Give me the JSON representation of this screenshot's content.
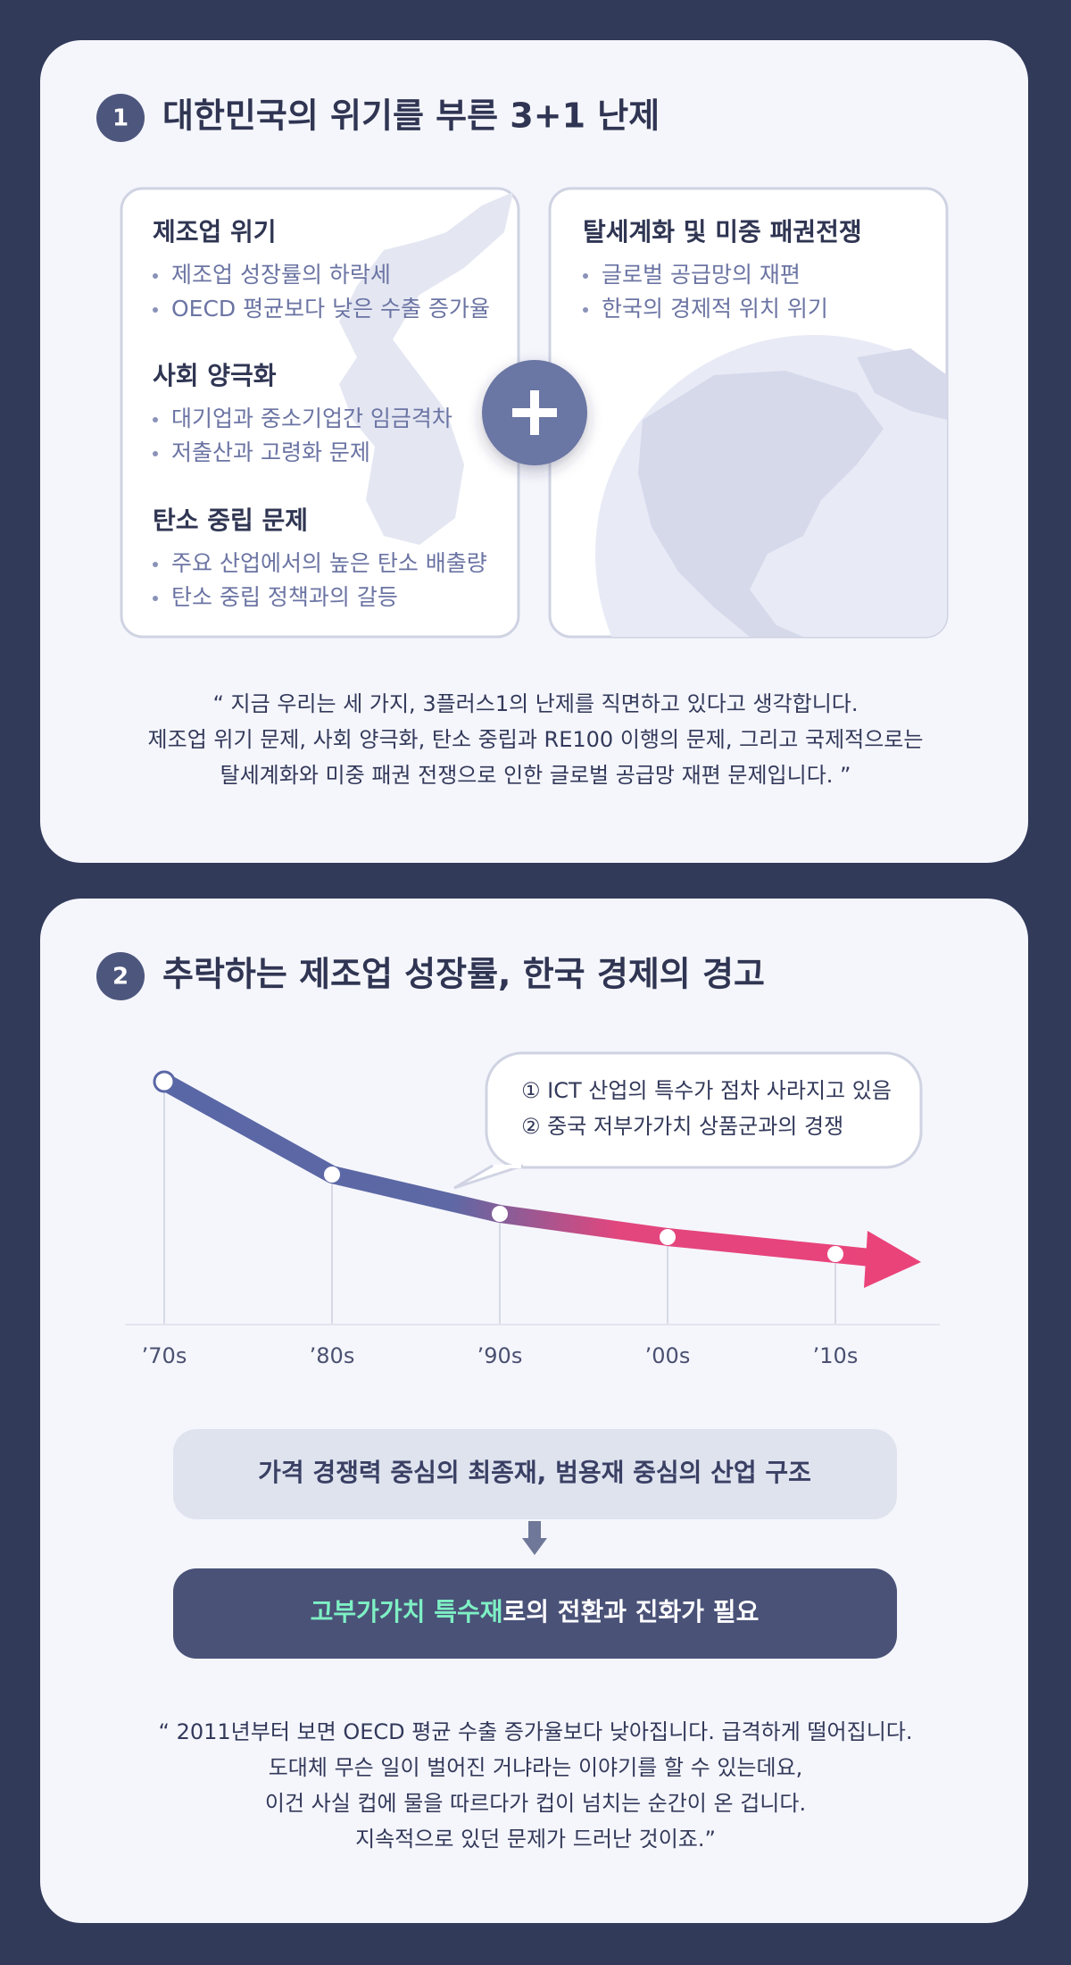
{
  "section1": {
    "number": "1",
    "title": "대한민국의 위기를 부른 3+1 난제",
    "left_panel": [
      {
        "heading": "제조업 위기",
        "bullets": [
          "제조업 성장률의 하락세",
          "OECD 평균보다 낮은 수출 증가율"
        ]
      },
      {
        "heading": "사회 양극화",
        "bullets": [
          "대기업과 중소기업간 임금격차",
          "저출산과 고령화 문제"
        ]
      },
      {
        "heading": "탄소 중립 문제",
        "bullets": [
          "주요 산업에서의 높은 탄소 배출량",
          "탄소 중립 정책과의 갈등"
        ]
      }
    ],
    "right_panel": {
      "heading": "탈세계화 및 미중 패권전쟁",
      "bullets": [
        "글로벌 공급망의 재편",
        "한국의 경제적 위치 위기"
      ]
    },
    "quote": [
      "“ 지금 우리는 세 가지, 3플러스1의 난제를 직면하고 있다고 생각합니다.",
      "제조업 위기 문제, 사회 양극화, 탄소 중립과 RE100 이행의 문제, 그리고 국제적으로는",
      "탈세계화와 미중 패권 전쟁으로 인한 글로벌 공급망 재편 문제입니다. ”"
    ]
  },
  "section2": {
    "number": "2",
    "title": "추락하는 제조업 성장률, 한국 경제의 경고",
    "callout": [
      "① ICT 산업의 특수가 점차 사라지고 있음",
      "② 중국 저부가가치 상품군과의 경쟁"
    ],
    "x_labels": [
      "’70s",
      "’80s",
      "’90s",
      "’00s",
      "’10s"
    ],
    "box_top": "가격 경쟁력 중심의 최종재, 범용재 중심의 산업 구조",
    "box_bottom": {
      "highlight": "고부가가치 특수재",
      "rest": "로의 전환과 진화가 필요"
    },
    "quote": [
      "“ 2011년부터 보면 OECD 평균 수출 증가율보다 낮아집니다. 급격하게 떨어집니다.",
      "도대체 무슨 일이 벌어진 거냐라는 이야기를 할 수 있는데요,",
      "이건 사실 컵에 물을 따르다가 컵이 넘치는 순간이 온 겁니다.",
      "지속적으로 있던 문제가 드러난 것이죠.”"
    ]
  }
}
